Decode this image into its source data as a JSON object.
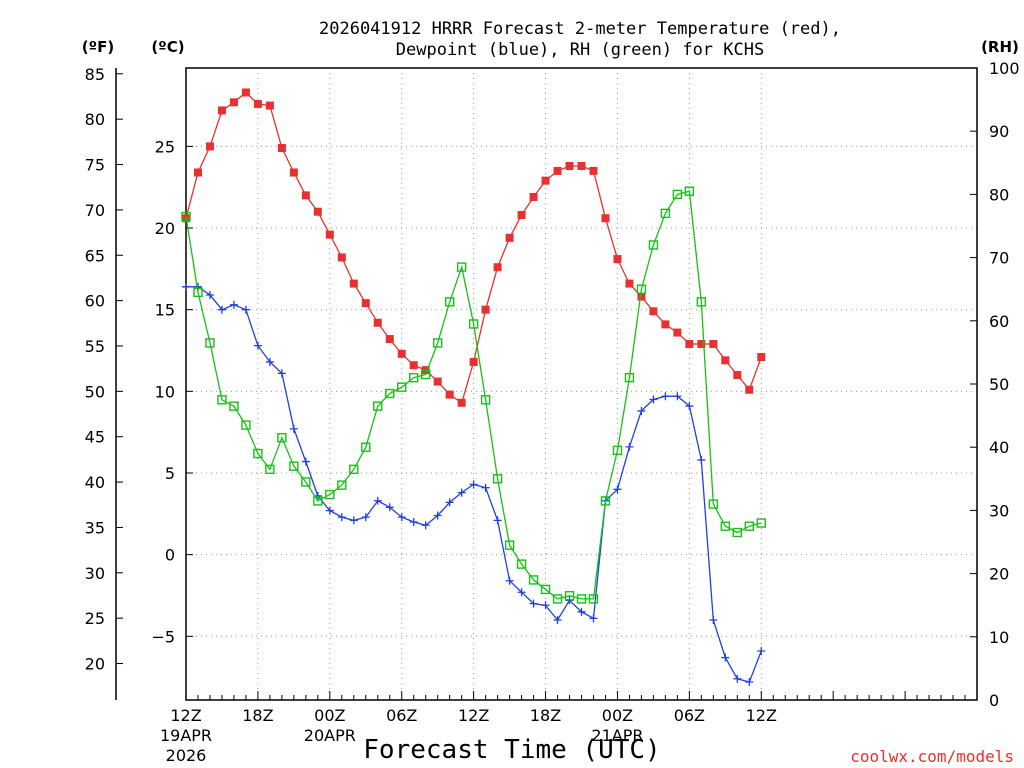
{
  "chart_data": {
    "type": "line",
    "title": "2026041912 HRRR Forecast 2-meter Temperature (red),",
    "title_line2": "Dewpoint (blue), RH (green) for KCHS",
    "xlabel": "Forecast Time (UTC)",
    "credit": "coolwx.com/models",
    "unit_labels": {
      "fahrenheit": "(ºF)",
      "celsius": "(ºC)",
      "rh": "(RH)"
    },
    "x_forecast_hours": [
      0,
      66
    ],
    "x_ticks": [
      {
        "hour": 0,
        "label": "12Z",
        "sub1": "19APR",
        "sub2": "2026"
      },
      {
        "hour": 6,
        "label": "18Z"
      },
      {
        "hour": 12,
        "label": "00Z",
        "sub1": "20APR"
      },
      {
        "hour": 18,
        "label": "06Z"
      },
      {
        "hour": 24,
        "label": "12Z"
      },
      {
        "hour": 30,
        "label": "18Z"
      },
      {
        "hour": 36,
        "label": "00Z",
        "sub1": "21APR"
      },
      {
        "hour": 42,
        "label": "06Z"
      },
      {
        "hour": 48,
        "label": "12Z"
      }
    ],
    "y_celsius": {
      "range": [
        -8.9,
        29.8
      ],
      "ticks": [
        25,
        20,
        15,
        10,
        5,
        0,
        -5
      ],
      "tick_labels": [
        "25",
        "20",
        "15",
        "10",
        "5",
        "0",
        "−5"
      ]
    },
    "y_fahrenheit": {
      "ticks": [
        85,
        80,
        75,
        70,
        65,
        60,
        55,
        50,
        45,
        40,
        35,
        30,
        25,
        20
      ],
      "tick_labels": [
        "85",
        "80",
        "75",
        "70",
        "65",
        "60",
        "55",
        "50",
        "45",
        "40",
        "35",
        "30",
        "25",
        "20"
      ]
    },
    "y_rh": {
      "range": [
        0,
        100
      ],
      "ticks": [
        100,
        90,
        80,
        70,
        60,
        50,
        40,
        30,
        20,
        10,
        0
      ],
      "tick_labels": [
        "100",
        "90",
        "80",
        "70",
        "60",
        "50",
        "40",
        "30",
        "20",
        "10",
        "0"
      ]
    },
    "series": [
      {
        "name": "2-meter Temperature (°C)",
        "axis": "celsius",
        "color": "#e83030",
        "marker": "filled-square",
        "values": [
          20.6,
          23.4,
          25.0,
          27.2,
          27.7,
          28.3,
          27.6,
          27.5,
          24.9,
          23.4,
          22.0,
          21.0,
          19.6,
          18.2,
          16.6,
          15.4,
          14.2,
          13.2,
          12.3,
          11.6,
          11.3,
          10.6,
          9.8,
          9.3,
          11.8,
          15.0,
          17.6,
          19.4,
          20.8,
          21.9,
          22.9,
          23.5,
          23.8,
          23.8,
          23.5,
          20.6,
          18.1,
          16.6,
          15.8,
          14.9,
          14.1,
          13.6,
          12.9,
          12.9,
          12.9,
          11.9,
          11.0,
          10.1,
          12.1
        ]
      },
      {
        "name": "Dewpoint (°C)",
        "axis": "celsius",
        "color": "#2040e0",
        "marker": "plus",
        "values": [
          16.4,
          16.4,
          15.9,
          15.0,
          15.3,
          15.0,
          12.8,
          11.8,
          11.1,
          7.7,
          5.7,
          3.6,
          2.7,
          2.3,
          2.1,
          2.3,
          3.3,
          2.9,
          2.3,
          2.0,
          1.8,
          2.4,
          3.2,
          3.8,
          4.3,
          4.1,
          2.1,
          -1.6,
          -2.3,
          -3.0,
          -3.1,
          -4.0,
          -2.8,
          -3.5,
          -3.9,
          3.3,
          4.0,
          6.6,
          8.8,
          9.5,
          9.7,
          9.7,
          9.1,
          5.8,
          -4.0,
          -6.3,
          -7.6,
          -7.8,
          -5.9
        ]
      },
      {
        "name": "RH (%)",
        "axis": "rh",
        "color": "#18c018",
        "marker": "open-square",
        "values": [
          76.5,
          64.5,
          56.5,
          47.5,
          46.5,
          43.5,
          39.0,
          36.5,
          41.5,
          37.0,
          34.5,
          31.5,
          32.5,
          34.0,
          36.5,
          40.0,
          46.5,
          48.5,
          49.5,
          51.0,
          51.5,
          56.5,
          63.0,
          68.5,
          59.5,
          47.5,
          35.0,
          24.5,
          21.5,
          19.0,
          17.5,
          16.0,
          16.5,
          16.0,
          16.0,
          31.5,
          39.5,
          51.0,
          65.0,
          72.0,
          77.0,
          80.0,
          80.5,
          63.0,
          31.0,
          27.5,
          26.5,
          27.5,
          28.0
        ]
      }
    ]
  }
}
